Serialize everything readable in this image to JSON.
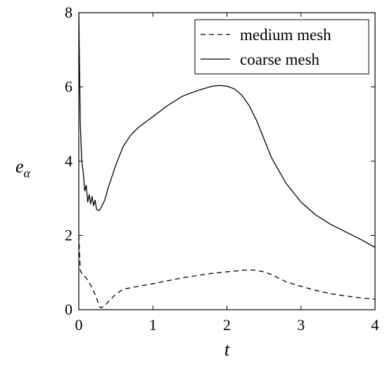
{
  "chart_data": {
    "type": "line",
    "xlabel": "t",
    "ylabel_base": "e",
    "ylabel_sub": "α",
    "xlim": [
      0,
      4
    ],
    "ylim": [
      0,
      8
    ],
    "xticks": [
      0,
      1,
      2,
      3,
      4
    ],
    "yticks": [
      0,
      2,
      4,
      6,
      8
    ],
    "xtick_labels": [
      "0",
      "1",
      "2",
      "3",
      "4"
    ],
    "ytick_labels": [
      "0",
      "2",
      "4",
      "6",
      "8"
    ],
    "grid": false,
    "legend_position": "top-right",
    "series": [
      {
        "name": "medium mesh",
        "style": "dashed",
        "color": "#000000",
        "x": [
          0.0,
          0.02,
          0.05,
          0.1,
          0.15,
          0.2,
          0.25,
          0.28,
          0.3,
          0.35,
          0.4,
          0.5,
          0.6,
          0.8,
          1.0,
          1.2,
          1.4,
          1.6,
          1.8,
          2.0,
          2.2,
          2.3,
          2.4,
          2.5,
          2.6,
          2.7,
          2.8,
          3.0,
          3.2,
          3.4,
          3.6,
          3.8,
          4.0
        ],
        "y": [
          2.0,
          1.05,
          0.95,
          0.85,
          0.7,
          0.5,
          0.25,
          0.08,
          0.05,
          0.1,
          0.22,
          0.42,
          0.55,
          0.63,
          0.7,
          0.78,
          0.86,
          0.92,
          0.98,
          1.02,
          1.06,
          1.07,
          1.06,
          1.02,
          0.95,
          0.85,
          0.75,
          0.63,
          0.52,
          0.43,
          0.37,
          0.32,
          0.28
        ]
      },
      {
        "name": "coarse mesh",
        "style": "solid",
        "color": "#000000",
        "x": [
          0.0,
          0.02,
          0.04,
          0.06,
          0.08,
          0.1,
          0.12,
          0.14,
          0.16,
          0.18,
          0.2,
          0.22,
          0.24,
          0.26,
          0.28,
          0.3,
          0.35,
          0.4,
          0.5,
          0.6,
          0.7,
          0.8,
          1.0,
          1.2,
          1.4,
          1.6,
          1.8,
          1.9,
          2.0,
          2.1,
          2.2,
          2.3,
          2.4,
          2.5,
          2.6,
          2.8,
          3.0,
          3.2,
          3.4,
          3.6,
          3.8,
          4.0
        ],
        "y": [
          8.0,
          5.0,
          4.0,
          3.7,
          3.2,
          3.35,
          2.9,
          3.1,
          2.85,
          3.05,
          2.8,
          2.95,
          2.7,
          2.68,
          2.68,
          2.75,
          2.95,
          3.3,
          3.9,
          4.4,
          4.7,
          4.9,
          5.2,
          5.5,
          5.75,
          5.9,
          6.02,
          6.04,
          6.02,
          5.95,
          5.78,
          5.5,
          5.1,
          4.6,
          4.1,
          3.4,
          2.9,
          2.55,
          2.3,
          2.1,
          1.9,
          1.68
        ]
      }
    ]
  }
}
